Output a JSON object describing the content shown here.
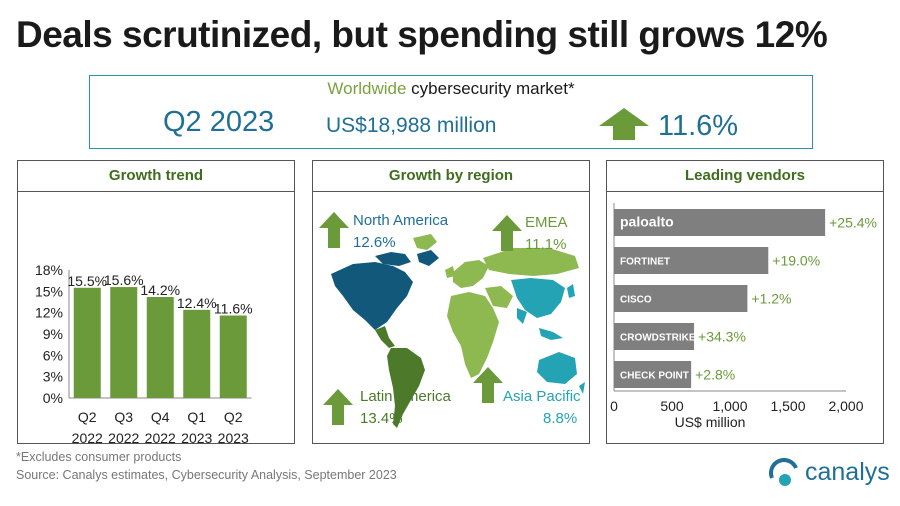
{
  "title": "Deals scrutinized, but spending still grows 12%",
  "banner": {
    "subtitle_green": "Worldwide",
    "subtitle_dark": " cybersecurity market*",
    "quarter": "Q2 2023",
    "value": "US$18,988 million",
    "growth": "11.6%"
  },
  "colors": {
    "green": "#6a9a3a",
    "light_green": "#8db950",
    "blue": "#1f6f96",
    "teal": "#24a3b5",
    "gray_bar": "#7f7f7f"
  },
  "chart_data": [
    {
      "type": "bar",
      "title": "Growth trend",
      "categories": [
        "Q2\n2022",
        "Q3\n2022",
        "Q4\n2022",
        "Q1\n2023",
        "Q2\n2023"
      ],
      "category_lines": [
        [
          "Q2",
          "2022"
        ],
        [
          "Q3",
          "2022"
        ],
        [
          "Q4",
          "2022"
        ],
        [
          "Q1",
          "2023"
        ],
        [
          "Q2",
          "2023"
        ]
      ],
      "values": [
        15.5,
        15.6,
        14.2,
        12.4,
        11.6
      ],
      "value_labels": [
        "15.5%",
        "15.6%",
        "14.2%",
        "12.4%",
        "11.6%"
      ],
      "yticks": [
        "18%",
        "15%",
        "12%",
        "9%",
        "6%",
        "3%",
        "0%"
      ],
      "ylim": [
        0,
        18
      ],
      "color": "#6a9a3a"
    },
    {
      "type": "bar",
      "orientation": "horizontal",
      "title": "Leading vendors",
      "categories": [
        "paloalto",
        "FORTINET",
        "CISCO",
        "CROWDSTRIKE",
        "CHECK POINT"
      ],
      "values": [
        1820,
        1330,
        1150,
        690,
        665
      ],
      "growth_labels": [
        "+25.4%",
        "+19.0%",
        "+1.2%",
        "+34.3%",
        "+2.8%"
      ],
      "xticks": [
        "0",
        "500",
        "1,000",
        "1,500",
        "2,000"
      ],
      "xlim": [
        0,
        2000
      ],
      "xlabel": "US$ million",
      "color": "#7f7f7f"
    }
  ],
  "region": {
    "title": "Growth by region",
    "items": [
      {
        "name": "North America",
        "growth": "12.6%"
      },
      {
        "name": "EMEA",
        "growth": "11.1%"
      },
      {
        "name": "Latin America",
        "growth": "13.4%"
      },
      {
        "name": "Asia Pacific",
        "growth": "8.8%"
      }
    ]
  },
  "footnote": "*Excludes consumer products",
  "source": "Source:  Canalys estimates, Cybersecurity Analysis, September 2023",
  "logo_text": "canalys"
}
